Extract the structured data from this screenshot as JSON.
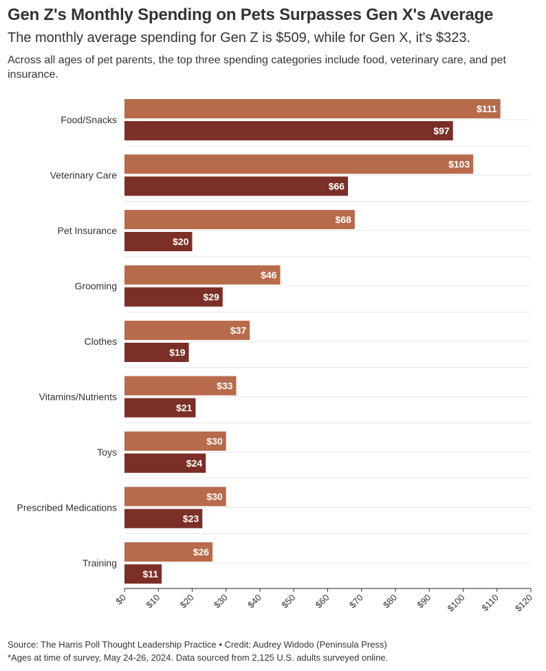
{
  "title": "Gen Z's Monthly Spending on Pets Surpasses Gen X's Average",
  "subtitle": "The monthly average spending for Gen Z is $509, while for Gen X, it's $323.",
  "description": "Across all ages of pet parents, the top three spending categories include food, veterinary care, and pet insurance.",
  "footer": {
    "source": "Source: The Harris Poll Thought Leadership Practice • Credit: Audrey Widodo (Peninsula Press)",
    "note": "*Ages at time of survey, May 24-26, 2024. Data sourced from 2,125 U.S. adults surveyed online."
  },
  "colors": {
    "gen_z": "#b86b4b",
    "gen_x": "#7b2f27",
    "grid": "#e6e6e6",
    "axis": "#333333"
  },
  "chart_data": {
    "type": "bar",
    "orientation": "horizontal",
    "categories": [
      "Food/Snacks",
      "Veterinary Care",
      "Pet Insurance",
      "Grooming",
      "Clothes",
      "Vitamins/Nutrients",
      "Toys",
      "Prescribed Medications",
      "Training"
    ],
    "series": [
      {
        "name": "Gen Z",
        "values": [
          111,
          103,
          68,
          46,
          37,
          33,
          30,
          30,
          26
        ]
      },
      {
        "name": "Gen X",
        "values": [
          97,
          66,
          20,
          29,
          19,
          21,
          24,
          23,
          11
        ]
      }
    ],
    "value_prefix": "$",
    "xlim": [
      0,
      120
    ],
    "xticks": [
      0,
      10,
      20,
      30,
      40,
      50,
      60,
      70,
      80,
      90,
      100,
      110,
      120
    ],
    "xtick_labels": [
      "$0",
      "$10",
      "$20",
      "$30",
      "$40",
      "$50",
      "$60",
      "$70",
      "$80",
      "$90",
      "$100",
      "$110",
      "$120"
    ]
  }
}
